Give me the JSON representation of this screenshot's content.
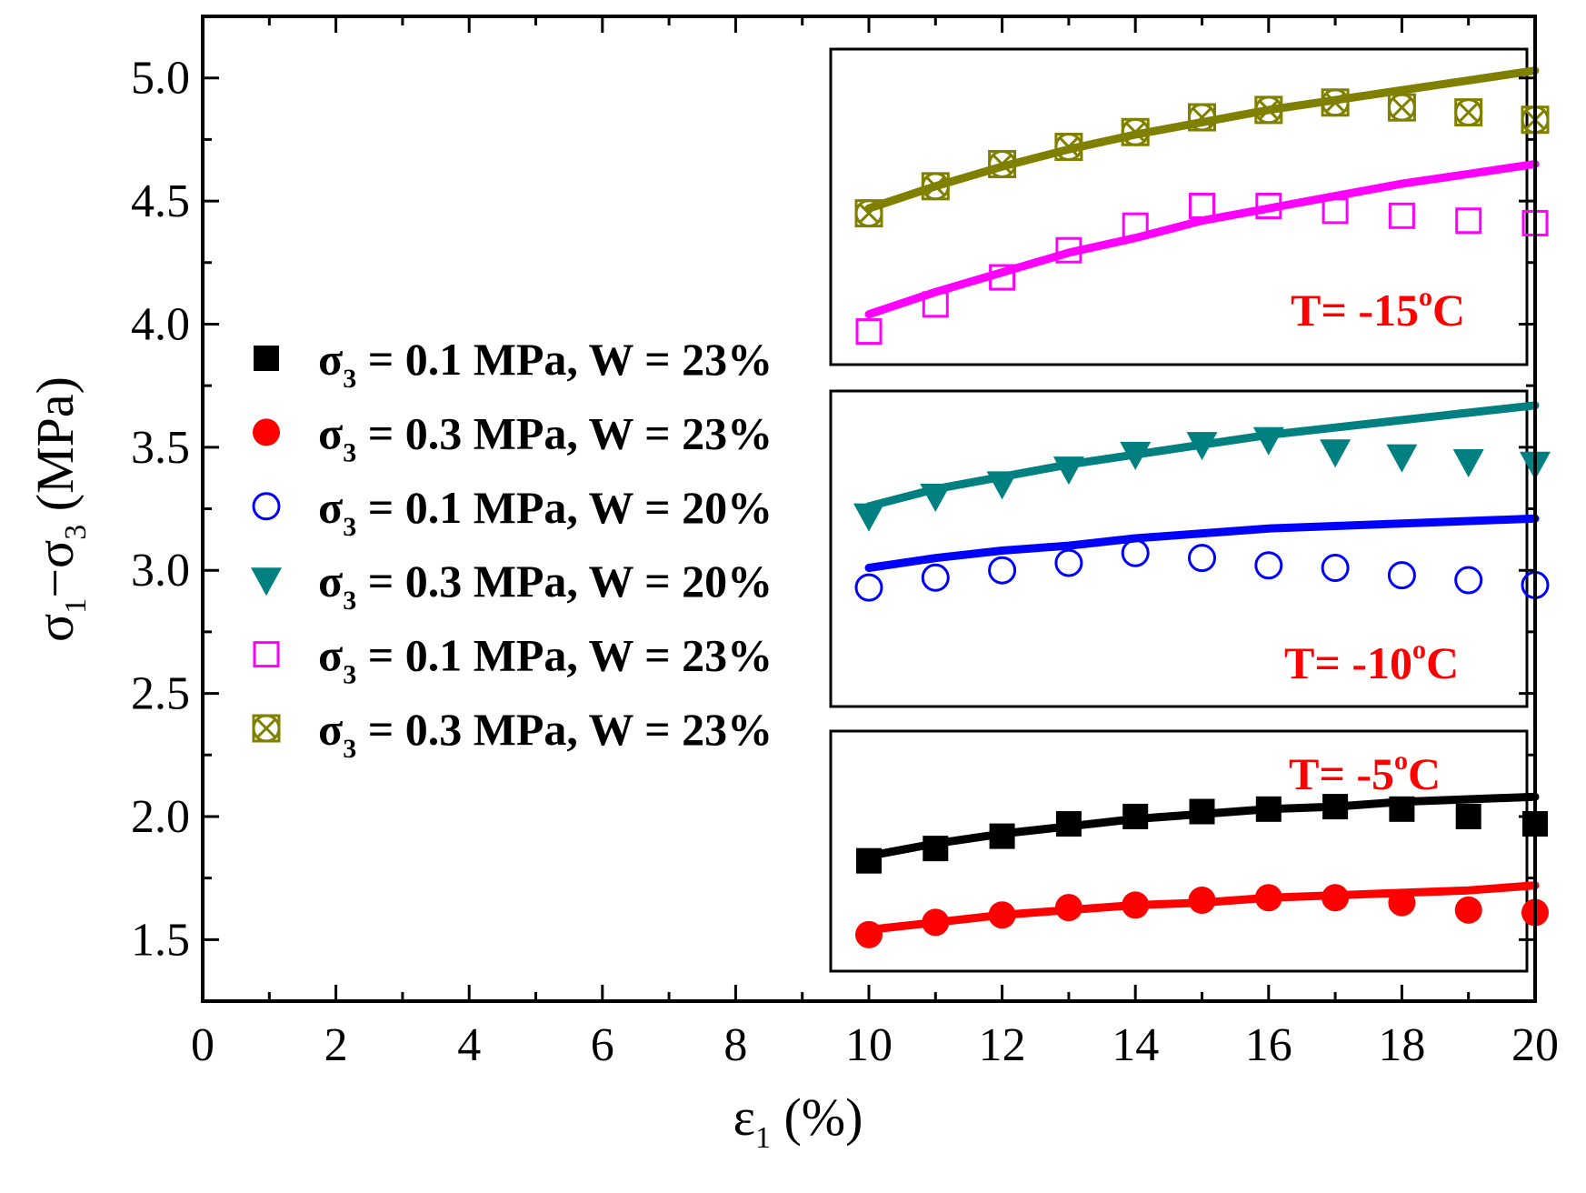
{
  "chart_data": {
    "type": "scatter",
    "xlabel": {
      "main": "ε",
      "sub": "1",
      "tail": " (%)"
    },
    "ylabel": {
      "p1": "σ",
      "s1": "1",
      "p2": "−σ",
      "s2": "3",
      "p3": " (MPa)"
    },
    "xlim": [
      0,
      20
    ],
    "ylim": [
      1.25,
      5.25
    ],
    "xticks": [
      0,
      2,
      4,
      6,
      8,
      10,
      12,
      14,
      16,
      18,
      20
    ],
    "yticks": [
      1.5,
      2.0,
      2.5,
      3.0,
      3.5,
      4.0,
      4.5,
      5.0
    ],
    "x": [
      10,
      11,
      12,
      13,
      14,
      15,
      16,
      17,
      18,
      19,
      20
    ],
    "panel_labels": [
      {
        "prefix": "T= -15",
        "sup": "o",
        "suffix": "C"
      },
      {
        "prefix": "T= -10",
        "sup": "o",
        "suffix": "C"
      },
      {
        "prefix": "T= -5",
        "sup": "o",
        "suffix": "C"
      }
    ],
    "series": [
      {
        "legend": {
          "pre": "σ",
          "sub": "3",
          "post": " = 0.1 MPa, W = 23%"
        },
        "marker": "square-filled",
        "color": "#000000",
        "values": [
          1.82,
          1.87,
          1.92,
          1.97,
          2.0,
          2.02,
          2.03,
          2.04,
          2.03,
          2.0,
          1.97
        ],
        "fit": [
          1.84,
          1.89,
          1.93,
          1.96,
          1.99,
          2.01,
          2.03,
          2.04,
          2.06,
          2.07,
          2.08
        ]
      },
      {
        "legend": {
          "pre": "σ",
          "sub": "3",
          "post": " = 0.3 MPa, W = 23%"
        },
        "marker": "circle-filled",
        "color": "#ff0000",
        "values": [
          1.52,
          1.57,
          1.6,
          1.63,
          1.64,
          1.66,
          1.67,
          1.67,
          1.65,
          1.62,
          1.61
        ],
        "fit": [
          1.54,
          1.57,
          1.6,
          1.62,
          1.64,
          1.65,
          1.67,
          1.68,
          1.69,
          1.7,
          1.72
        ]
      },
      {
        "legend": {
          "pre": "σ",
          "sub": "3",
          "post": " = 0.1 MPa, W = 20%"
        },
        "marker": "circle-open",
        "color": "#0000ff",
        "values": [
          2.93,
          2.97,
          3.0,
          3.03,
          3.07,
          3.05,
          3.02,
          3.01,
          2.98,
          2.96,
          2.94
        ],
        "fit": [
          3.01,
          3.05,
          3.08,
          3.1,
          3.13,
          3.15,
          3.17,
          3.18,
          3.19,
          3.2,
          3.21
        ]
      },
      {
        "legend": {
          "pre": "σ",
          "sub": "3",
          "post": " = 0.3 MPa, W = 20%"
        },
        "marker": "triangle-down-filled",
        "color": "#008080",
        "values": [
          3.22,
          3.3,
          3.35,
          3.41,
          3.47,
          3.51,
          3.53,
          3.48,
          3.46,
          3.44,
          3.43
        ],
        "fit": [
          3.26,
          3.33,
          3.38,
          3.43,
          3.47,
          3.51,
          3.55,
          3.58,
          3.61,
          3.64,
          3.67
        ]
      },
      {
        "legend": {
          "pre": "σ",
          "sub": "3",
          "post": " = 0.1 MPa, W = 23%"
        },
        "marker": "square-open",
        "color": "#ff00ff",
        "values": [
          3.97,
          4.08,
          4.19,
          4.3,
          4.4,
          4.48,
          4.48,
          4.46,
          4.44,
          4.42,
          4.41
        ],
        "fit": [
          4.04,
          4.13,
          4.21,
          4.29,
          4.35,
          4.42,
          4.47,
          4.52,
          4.57,
          4.61,
          4.65
        ]
      },
      {
        "legend": {
          "pre": "σ",
          "sub": "3",
          "post": " = 0.3 MPa, W = 23%"
        },
        "marker": "crossed-circle-square",
        "color": "#808000",
        "values": [
          4.45,
          4.56,
          4.65,
          4.72,
          4.78,
          4.84,
          4.87,
          4.9,
          4.88,
          4.86,
          4.83
        ],
        "fit": [
          4.47,
          4.56,
          4.64,
          4.71,
          4.77,
          4.82,
          4.87,
          4.91,
          4.95,
          4.99,
          5.03
        ]
      }
    ]
  }
}
